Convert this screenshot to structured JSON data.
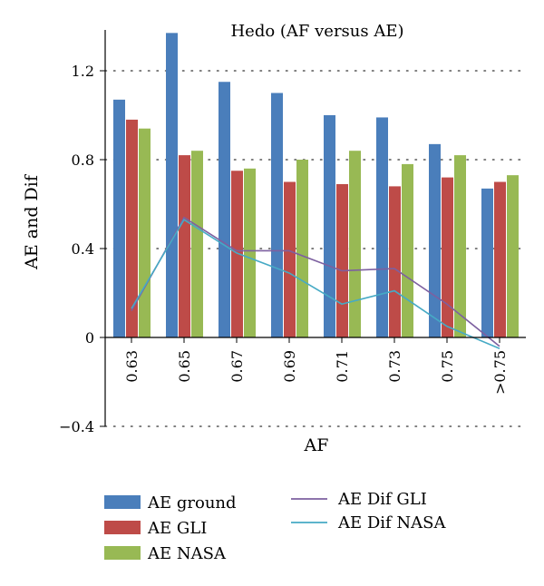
{
  "chart_data": {
    "type": "bar",
    "title": "Hedo (AF versus AE)",
    "xlabel": "AF",
    "ylabel": "AE and Dif",
    "categories": [
      "0.63",
      "0.65",
      "0.67",
      "0.69",
      "0.71",
      "0.73",
      "0.75",
      ">0.75"
    ],
    "ylim": [
      -0.4,
      1.35
    ],
    "yticks": [
      -0.4,
      0,
      0.4,
      0.8,
      1.2
    ],
    "ytick_labels": [
      "−0.4",
      "0",
      "0.4",
      "0.8",
      "1.2"
    ],
    "grid": "horizontal dotted",
    "legend_position": "bottom",
    "series": [
      {
        "name": "AE ground",
        "kind": "bar",
        "color": "#4a7ebb",
        "values": [
          1.07,
          1.37,
          1.15,
          1.1,
          1.0,
          0.99,
          0.87,
          0.67
        ]
      },
      {
        "name": "AE GLI",
        "kind": "bar",
        "color": "#be4b48",
        "values": [
          0.98,
          0.82,
          0.75,
          0.7,
          0.69,
          0.68,
          0.72,
          0.7
        ]
      },
      {
        "name": "AE NASA",
        "kind": "bar",
        "color": "#98b954",
        "values": [
          0.94,
          0.84,
          0.76,
          0.8,
          0.84,
          0.78,
          0.82,
          0.73
        ]
      },
      {
        "name": "AE Dif GLI",
        "kind": "line",
        "color": "#7d60a0",
        "values": [
          0.12,
          0.54,
          0.39,
          0.39,
          0.3,
          0.31,
          0.15,
          -0.04
        ]
      },
      {
        "name": "AE Dif NASA",
        "kind": "line",
        "color": "#46aac5",
        "values": [
          0.13,
          0.53,
          0.38,
          0.29,
          0.15,
          0.21,
          0.05,
          -0.05
        ]
      }
    ]
  }
}
